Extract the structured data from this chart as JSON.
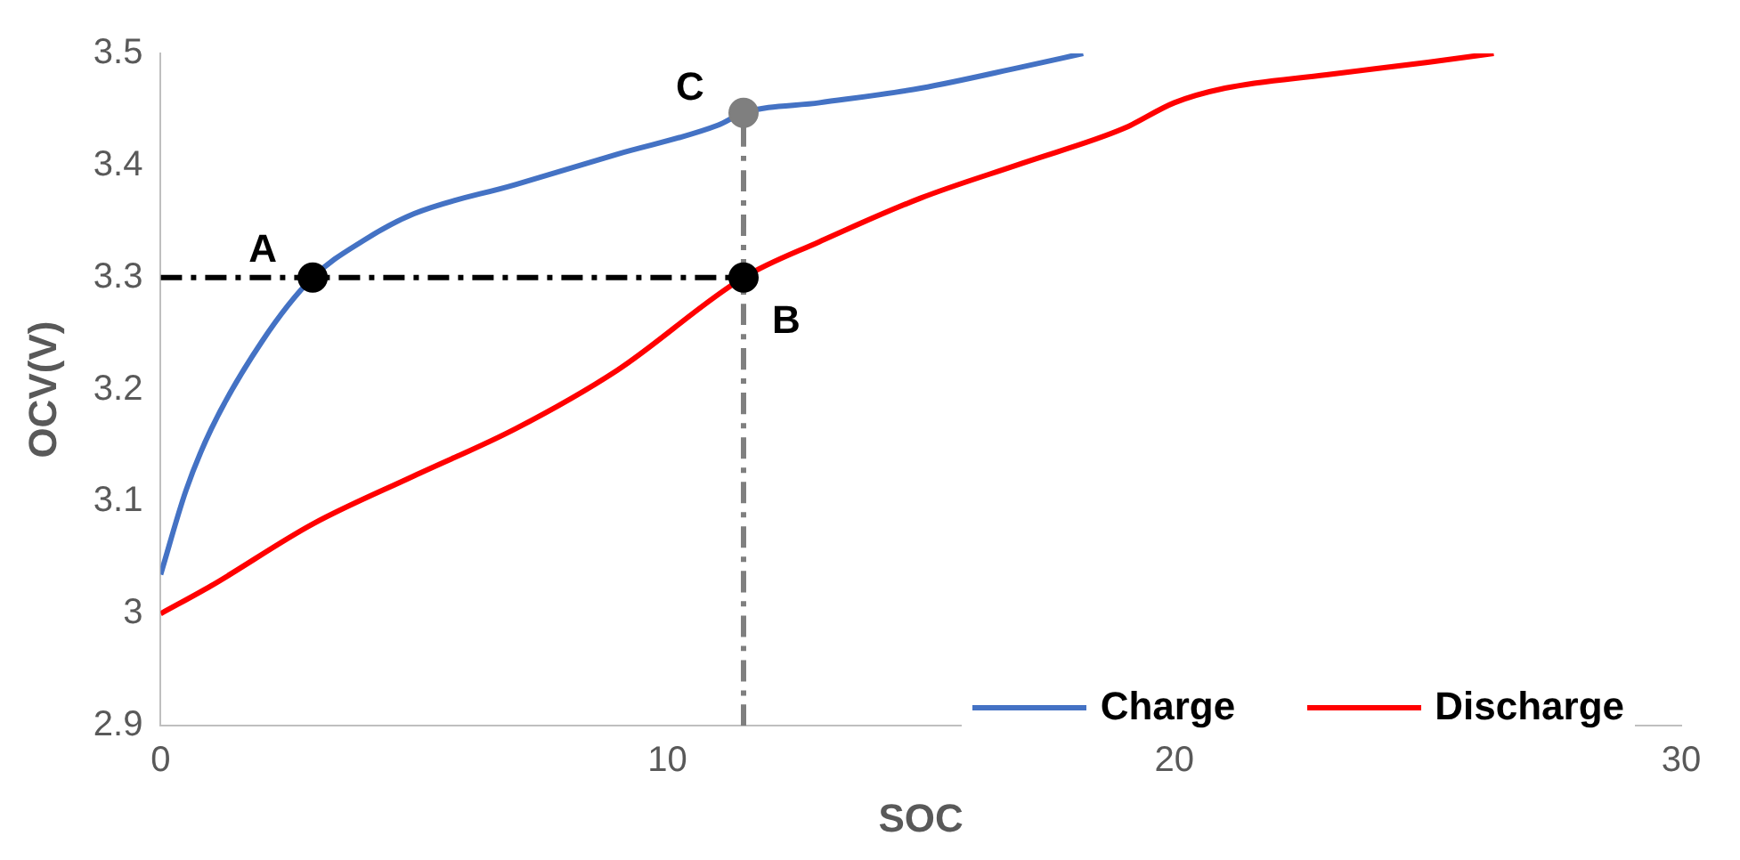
{
  "chart_data": {
    "type": "line",
    "xlabel": "SOC",
    "ylabel": "OCV(V)",
    "xlim": [
      0,
      30
    ],
    "xticks": [
      0,
      10,
      20,
      30
    ],
    "ylim": [
      2.9,
      3.5
    ],
    "yticks": [
      2.9,
      3,
      3.1,
      3.2,
      3.3,
      3.4,
      3.5
    ],
    "grid": false,
    "legend": "bottom right",
    "marker": "none",
    "series": [
      {
        "name": "Charge",
        "color": "#4472c4",
        "line_style": "solid",
        "x": [
          0,
          0.5,
          1,
          2,
          3,
          4,
          5,
          7,
          9,
          11,
          11.5,
          13,
          15,
          17,
          18.2
        ],
        "values": [
          3.035,
          3.11,
          3.165,
          3.243,
          3.3,
          3.333,
          3.357,
          3.383,
          3.41,
          3.436,
          3.447,
          3.456,
          3.469,
          3.488,
          3.5
        ]
      },
      {
        "name": "Discharge",
        "color": "#ff0000",
        "line_style": "solid",
        "x": [
          0,
          1,
          3,
          5,
          7,
          9,
          11.5,
          13,
          15,
          17,
          19,
          20,
          21,
          23,
          25,
          26.3
        ],
        "values": [
          3,
          3.025,
          3.08,
          3.123,
          3.165,
          3.217,
          3.3,
          3.332,
          3.371,
          3.402,
          3.433,
          3.456,
          3.469,
          3.481,
          3.492,
          3.5
        ]
      },
      {
        "type": "line",
        "color": "#000000",
        "line_style": "dashed",
        "x": [
          0,
          11.5
        ],
        "values": [
          3.3,
          3.3
        ]
      },
      {
        "type": "line",
        "color": "#7f7f7f",
        "line_style": "dashed",
        "x": [
          11.5,
          11.5
        ],
        "values": [
          2.9,
          3.447
        ]
      },
      {
        "type": "scatter",
        "marker": "circle",
        "colors": [
          "#000000",
          "#000000",
          "#7f7f7f"
        ],
        "x": [
          3,
          11.5,
          11.5
        ],
        "values": [
          3.3,
          3.3,
          3.447
        ]
      }
    ],
    "annotations": [
      "A",
      "B",
      "C"
    ]
  }
}
